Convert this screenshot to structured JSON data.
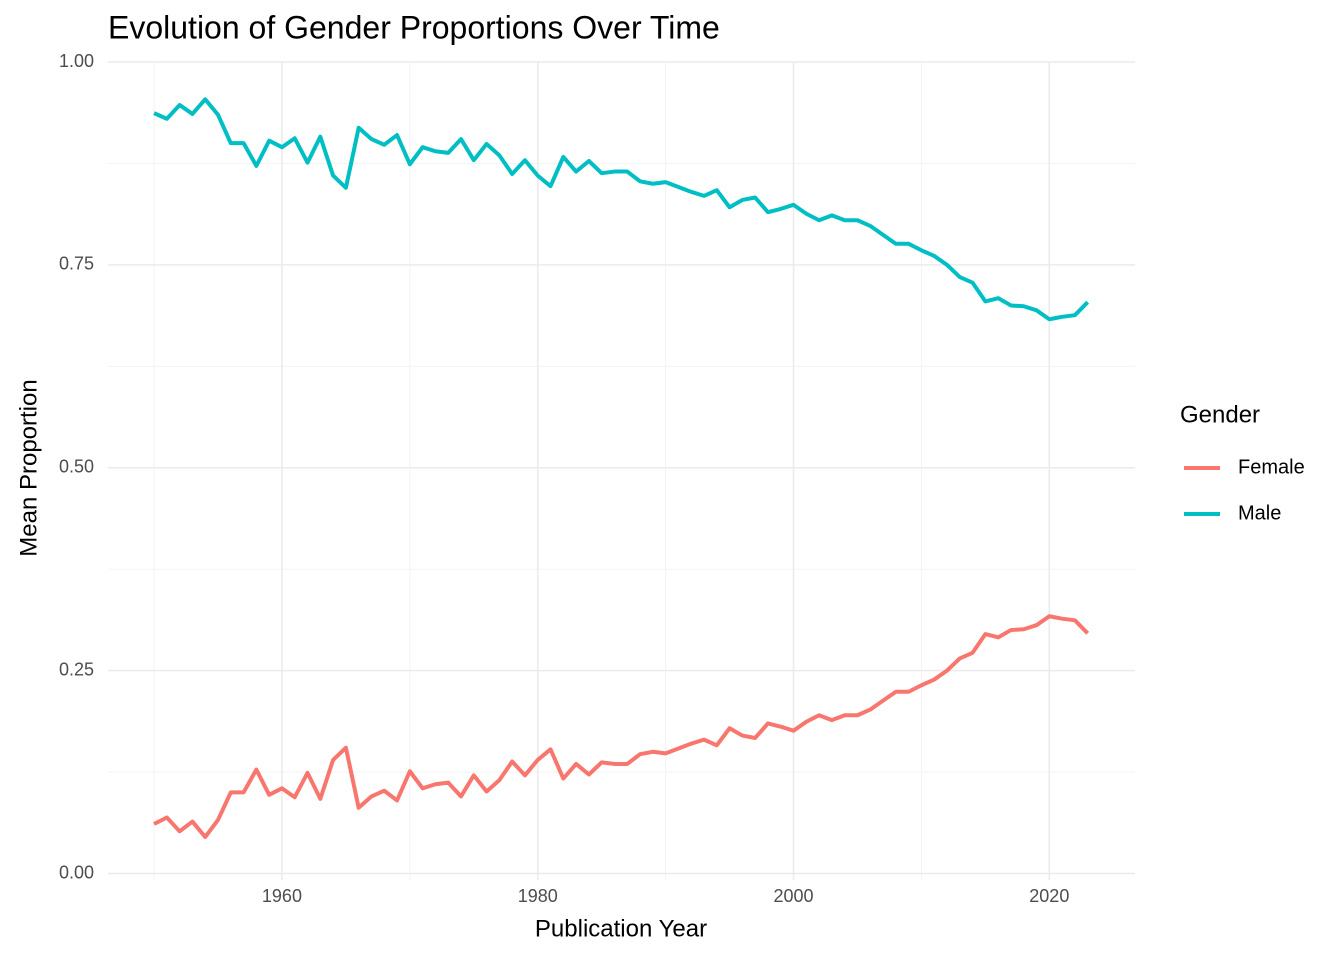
{
  "chart_data": {
    "type": "line",
    "title": "Evolution of Gender Proportions Over Time",
    "x_label": "Publication Year",
    "y_label": "Mean Proportion",
    "legend_title": "Gender",
    "legend_position": "right",
    "grid": true,
    "x": [
      1950,
      1951,
      1952,
      1953,
      1954,
      1955,
      1956,
      1957,
      1958,
      1959,
      1960,
      1961,
      1962,
      1963,
      1964,
      1965,
      1966,
      1967,
      1968,
      1969,
      1970,
      1971,
      1972,
      1973,
      1974,
      1975,
      1976,
      1977,
      1978,
      1979,
      1980,
      1981,
      1982,
      1983,
      1984,
      1985,
      1986,
      1987,
      1988,
      1989,
      1990,
      1991,
      1992,
      1993,
      1994,
      1995,
      1996,
      1997,
      1998,
      1999,
      2000,
      2001,
      2002,
      2003,
      2004,
      2005,
      2006,
      2007,
      2008,
      2009,
      2010,
      2011,
      2012,
      2013,
      2014,
      2015,
      2016,
      2017,
      2018,
      2019,
      2020,
      2021,
      2022,
      2023
    ],
    "series": [
      {
        "name": "Female",
        "color": "#F8766D",
        "values": [
          0.061,
          0.069,
          0.052,
          0.064,
          0.045,
          0.066,
          0.1,
          0.1,
          0.128,
          0.097,
          0.105,
          0.094,
          0.124,
          0.092,
          0.14,
          0.155,
          0.081,
          0.095,
          0.102,
          0.09,
          0.126,
          0.105,
          0.11,
          0.112,
          0.095,
          0.121,
          0.101,
          0.115,
          0.138,
          0.121,
          0.14,
          0.153,
          0.117,
          0.135,
          0.122,
          0.137,
          0.135,
          0.135,
          0.147,
          0.15,
          0.148,
          0.154,
          0.16,
          0.165,
          0.158,
          0.179,
          0.17,
          0.167,
          0.185,
          0.181,
          0.176,
          0.187,
          0.195,
          0.189,
          0.195,
          0.195,
          0.202,
          0.213,
          0.224,
          0.224,
          0.232,
          0.239,
          0.25,
          0.265,
          0.272,
          0.295,
          0.291,
          0.3,
          0.301,
          0.306,
          0.317,
          0.314,
          0.312,
          0.296
        ]
      },
      {
        "name": "Male",
        "color": "#00BFC4",
        "values": [
          0.937,
          0.93,
          0.947,
          0.936,
          0.954,
          0.935,
          0.9,
          0.9,
          0.872,
          0.903,
          0.895,
          0.906,
          0.876,
          0.908,
          0.86,
          0.845,
          0.919,
          0.905,
          0.898,
          0.91,
          0.874,
          0.895,
          0.89,
          0.888,
          0.905,
          0.879,
          0.899,
          0.885,
          0.862,
          0.879,
          0.86,
          0.847,
          0.883,
          0.865,
          0.878,
          0.863,
          0.865,
          0.865,
          0.853,
          0.85,
          0.852,
          0.846,
          0.84,
          0.835,
          0.842,
          0.821,
          0.83,
          0.833,
          0.815,
          0.819,
          0.824,
          0.813,
          0.805,
          0.811,
          0.805,
          0.805,
          0.798,
          0.787,
          0.776,
          0.776,
          0.768,
          0.761,
          0.75,
          0.735,
          0.728,
          0.705,
          0.709,
          0.7,
          0.699,
          0.694,
          0.683,
          0.686,
          0.688,
          0.704
        ]
      }
    ],
    "xlim": [
      1946.4,
      2026.7
    ],
    "xticks": [
      1960,
      1980,
      2000,
      2020
    ],
    "minor_xticks": [
      1950,
      1970,
      1990,
      2010
    ],
    "ylim": [
      -0.008,
      1.0
    ],
    "yticks": [
      {
        "value": 0,
        "label": "0.00"
      },
      {
        "value": 0.25,
        "label": "0.25"
      },
      {
        "value": 0.5,
        "label": "0.50"
      },
      {
        "value": 0.75,
        "label": "0.75"
      },
      {
        "value": 1,
        "label": "1.00"
      }
    ],
    "minor_yticks": [
      0.125,
      0.375,
      0.625,
      0.875
    ]
  }
}
